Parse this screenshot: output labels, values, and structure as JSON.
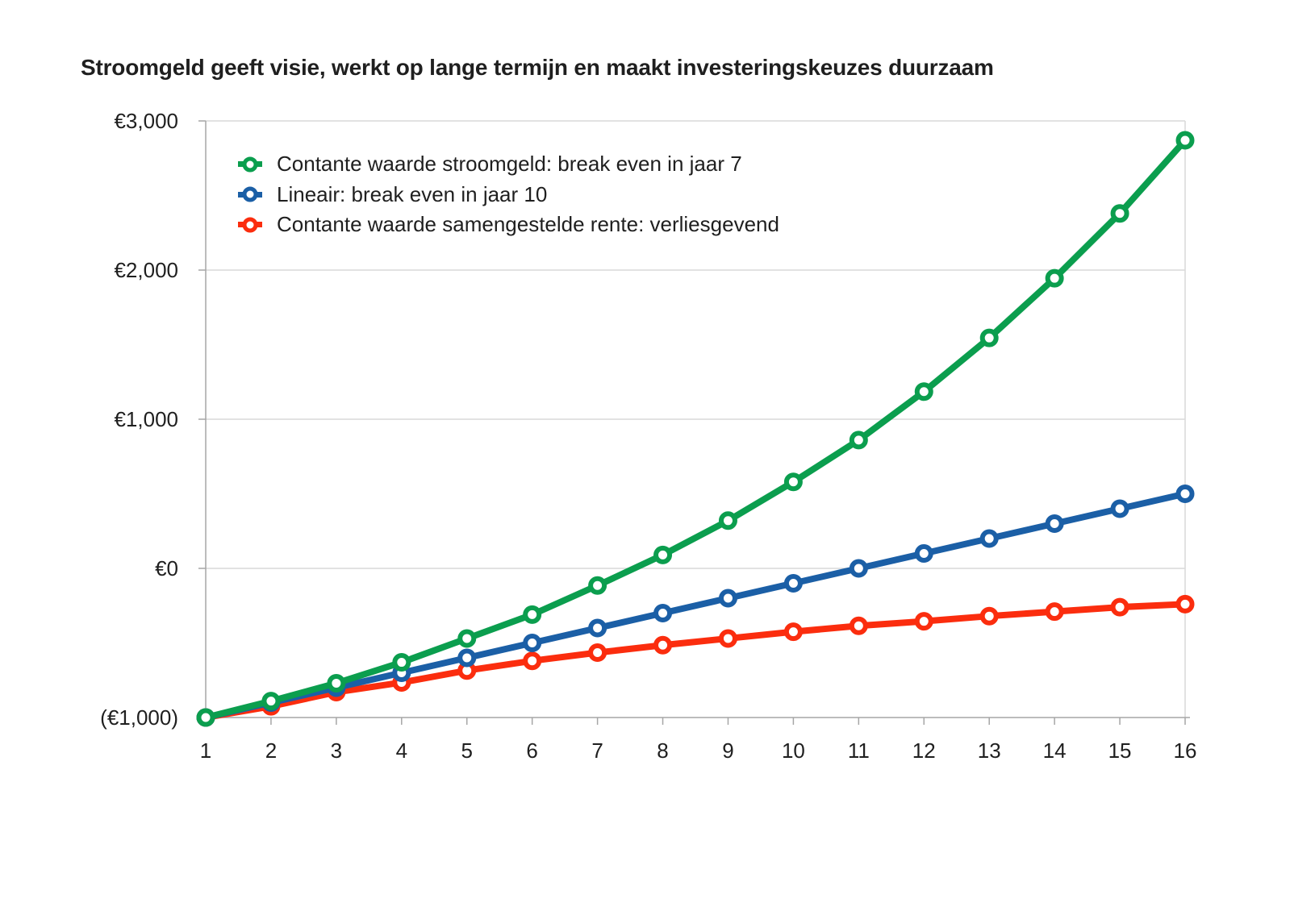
{
  "chart_data": {
    "type": "line",
    "title": "Stroomgeld geeft visie, werkt op lange termijn en maakt investeringskeuzes duurzaam",
    "x": [
      "1",
      "2",
      "3",
      "4",
      "5",
      "6",
      "7",
      "8",
      "9",
      "10",
      "11",
      "12",
      "13",
      "14",
      "15",
      "16"
    ],
    "series": [
      {
        "name": "Contante waarde stroomgeld: break even in jaar 7",
        "color": "#0b9e4e",
        "values": [
          -1000,
          -890,
          -770,
          -630,
          -470,
          -310,
          -115,
          90,
          320,
          580,
          860,
          1185,
          1545,
          1945,
          2380,
          2870
        ]
      },
      {
        "name": "Lineair: break even in jaar 10",
        "color": "#1b5fa6",
        "values": [
          -1000,
          -900,
          -800,
          -700,
          -600,
          -500,
          -400,
          -300,
          -200,
          -100,
          0,
          100,
          200,
          300,
          400,
          500
        ]
      },
      {
        "name": "Contante waarde samengestelde rente: verliesgevend",
        "color": "#fb2d0e",
        "values": [
          -1000,
          -925,
          -830,
          -765,
          -685,
          -620,
          -565,
          -515,
          -470,
          -425,
          -385,
          -355,
          -320,
          -290,
          -260,
          -240
        ]
      }
    ],
    "y_ticks": [
      {
        "value": 3000,
        "label": "€3,000"
      },
      {
        "value": 2000,
        "label": "€2,000"
      },
      {
        "value": 1000,
        "label": "€1,000"
      },
      {
        "value": 0,
        "label": "€0"
      },
      {
        "value": -1000,
        "label": "(€1,000)"
      }
    ],
    "ylim": [
      -1000,
      3000
    ],
    "grid": "horizontal",
    "legend_position": "top-left-inside"
  },
  "colors": {
    "gridline": "#d9d9d9",
    "axis": "#a6a6a6",
    "text": "#1f1f1f",
    "background": "#ffffff"
  }
}
